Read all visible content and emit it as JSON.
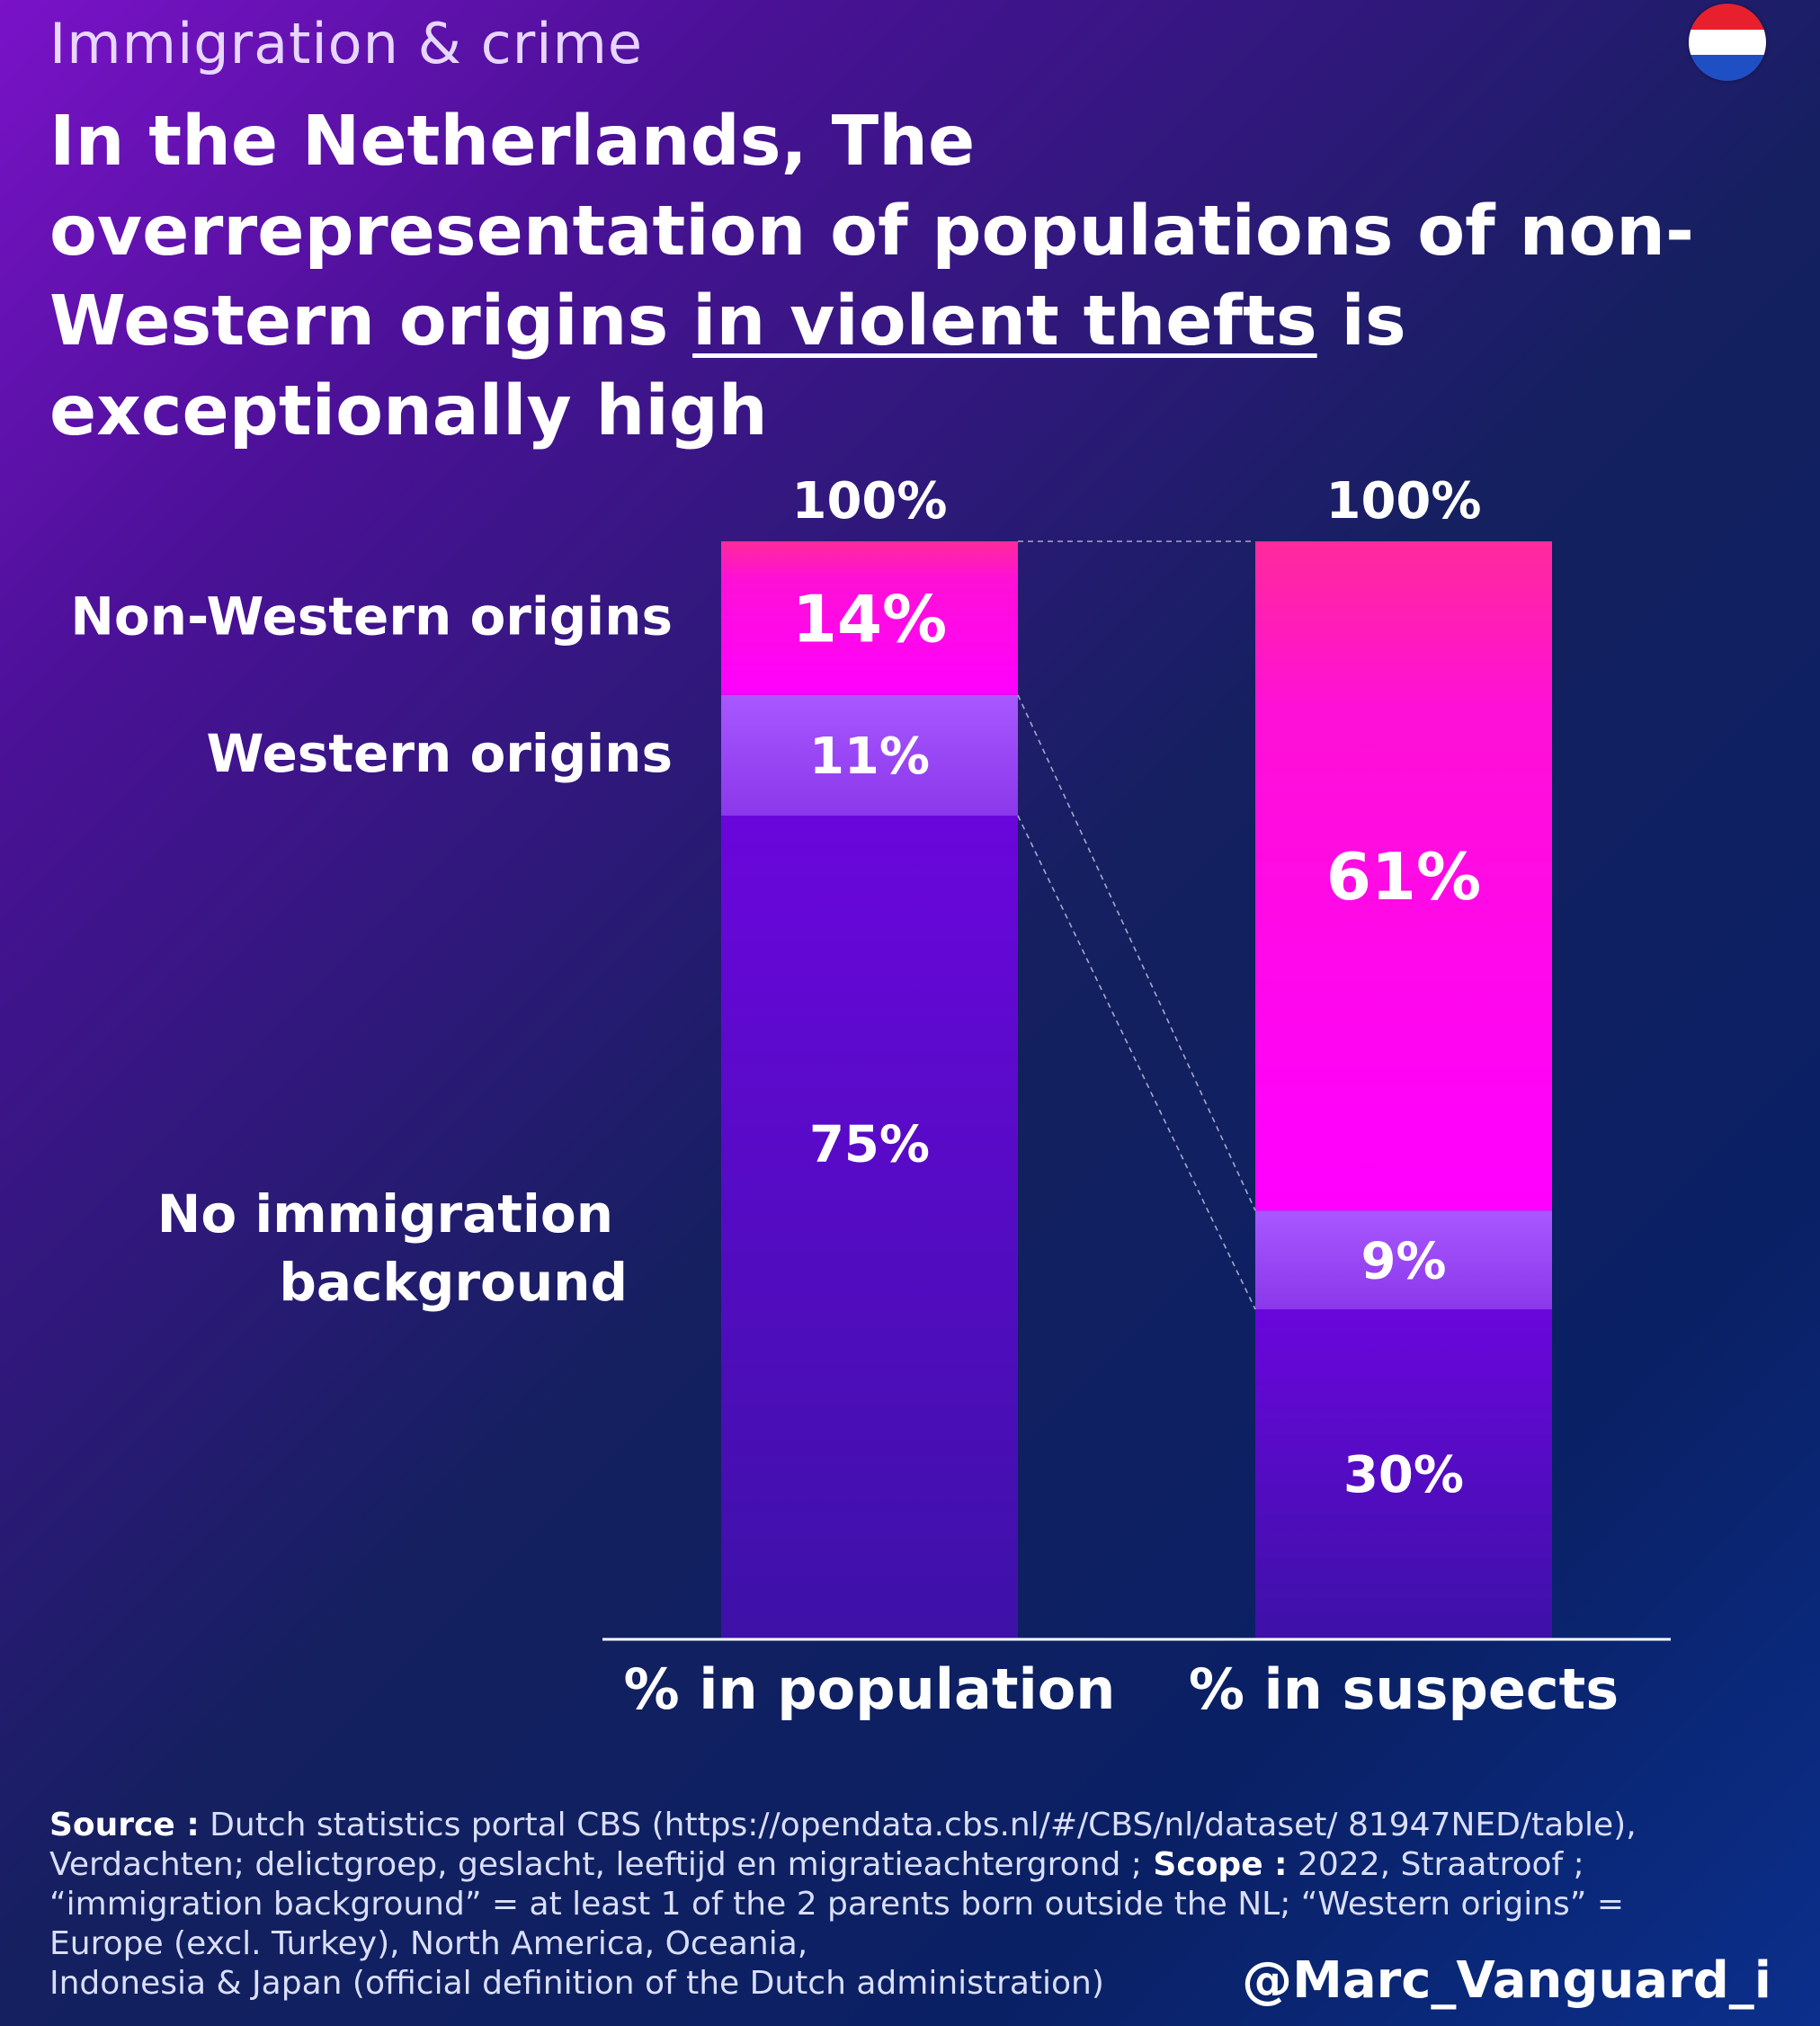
{
  "header": {
    "kicker": "Immigration & crime",
    "headline_1": "In the Netherlands, The overrepresentation of populations of non-Western origins ",
    "headline_underline_1": "in violent thefts",
    "headline_2": " is exceptionally high",
    "flag_icon": "netherlands-flag-icon"
  },
  "colors": {
    "non_western": "#ff0ae6",
    "western": "#9b45f3",
    "no_background": "#5f0ad6",
    "background_dark": "#0c1f5e"
  },
  "chart_data": {
    "type": "bar",
    "stacked": true,
    "categories": [
      "% in population",
      "% in suspects"
    ],
    "series": [
      {
        "name": "No immigration background",
        "values": [
          75,
          30
        ]
      },
      {
        "name": "Western origins",
        "values": [
          11,
          9
        ]
      },
      {
        "name": "Non-Western origins",
        "values": [
          14,
          61
        ]
      }
    ],
    "totals": [
      "100%",
      "100%"
    ],
    "value_labels": [
      [
        "75%",
        "11%",
        "14%"
      ],
      [
        "30%",
        "9%",
        "61%"
      ]
    ],
    "ylim": [
      0,
      100
    ],
    "grid": false,
    "legend": "left-of-bars"
  },
  "footer": {
    "source_label": "Source :",
    "source_text": " Dutch statistics portal CBS (https://opendata.cbs.nl/#/CBS/nl/dataset/ 81947NED/table), Verdachten; delictgroep, geslacht, leeftijd en migratieachtergrond ;",
    "scope_label": " Scope :",
    "scope_text": " 2022, Straatroof ; “immigration background” = at least 1 of the 2 parents born outside the NL; “Western origins” = Europe (excl. Turkey), North America, Oceania,",
    "scope_text_2": "Indonesia & Japan (official definition of the Dutch administration)"
  },
  "handle": "@Marc_Vanguard_i"
}
